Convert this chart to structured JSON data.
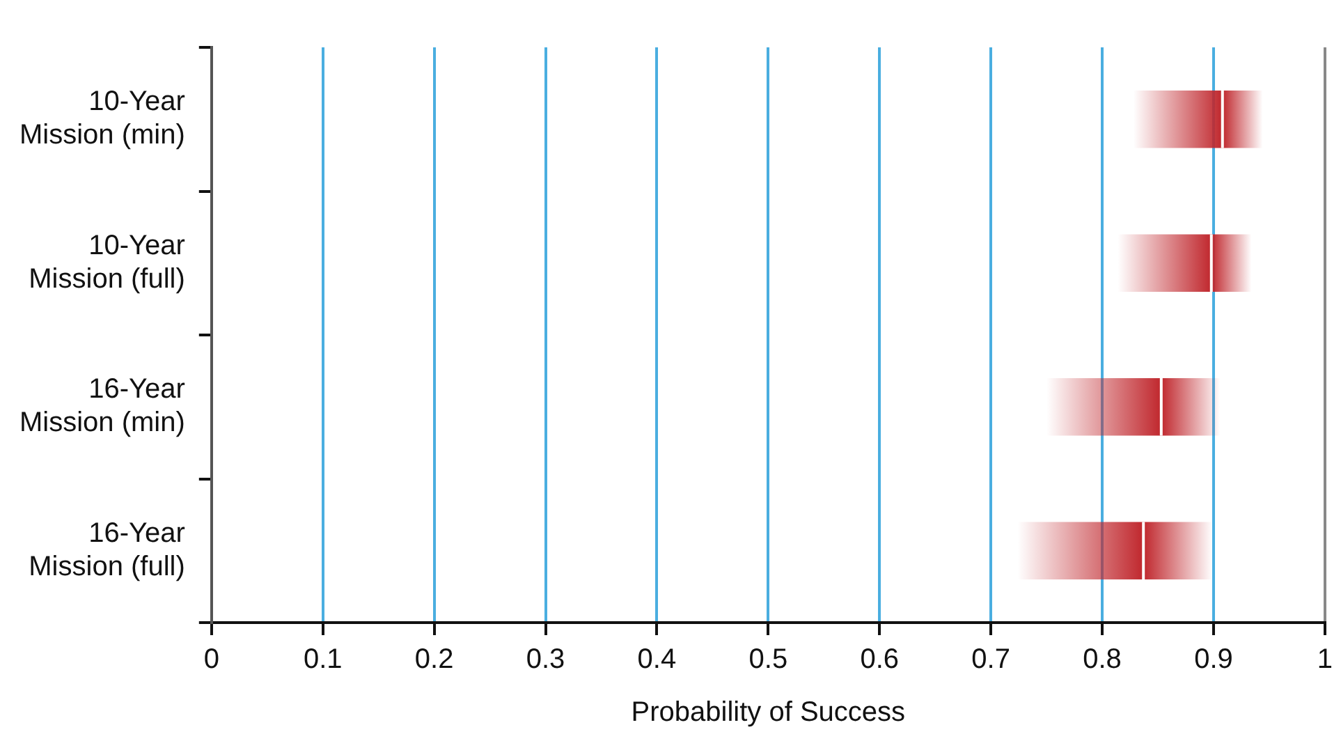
{
  "chart_data": {
    "type": "box",
    "orientation": "horizontal",
    "xlabel": "Probability of Success",
    "categories": [
      "10-Year Mission (min)",
      "10-Year Mission (full)",
      "16-Year Mission (min)",
      "16-Year Mission (full)"
    ],
    "boxes": [
      {
        "low": 0.828,
        "q1": 0.828,
        "median": 0.908,
        "q3": 0.944,
        "high": 0.944
      },
      {
        "low": 0.814,
        "q1": 0.814,
        "median": 0.898,
        "q3": 0.934,
        "high": 0.934
      },
      {
        "low": 0.75,
        "q1": 0.75,
        "median": 0.853,
        "q3": 0.906,
        "high": 0.906
      },
      {
        "low": 0.724,
        "q1": 0.724,
        "median": 0.837,
        "q3": 0.899,
        "high": 0.899
      }
    ],
    "color": "#c0272d",
    "xlim": [
      0,
      1
    ],
    "xticks": [
      0,
      0.1,
      0.2,
      0.3,
      0.4,
      0.5,
      0.6,
      0.7,
      0.8,
      0.9,
      1
    ],
    "grid": "x",
    "legend": false
  }
}
